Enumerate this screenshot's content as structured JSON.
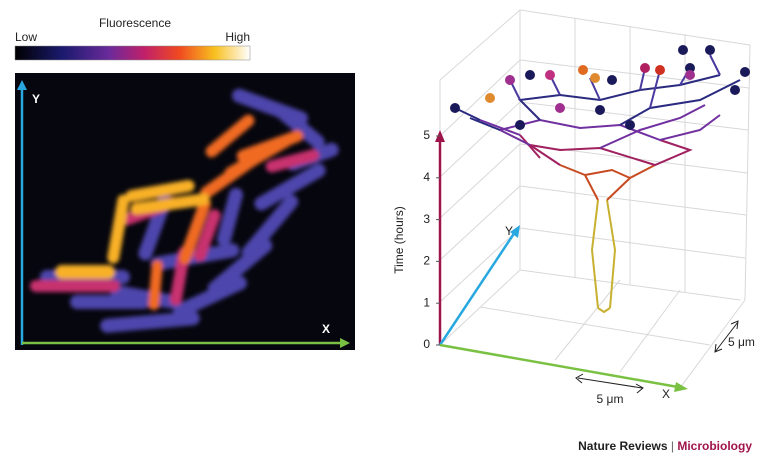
{
  "colorbar": {
    "title": "Fluorescence",
    "low": "Low",
    "high": "High"
  },
  "image_panel": {
    "y_label": "Y",
    "x_label": "X"
  },
  "lineage_plot": {
    "z_label": "Time (hours)",
    "z_ticks": [
      0,
      1,
      2,
      3,
      4,
      5
    ],
    "y_label": "Y",
    "x_label": "X",
    "scale_x": "5 μm",
    "scale_y": "5 μm"
  },
  "footer": {
    "journal": "Nature Reviews",
    "separator": "|",
    "section": "Microbiology"
  }
}
